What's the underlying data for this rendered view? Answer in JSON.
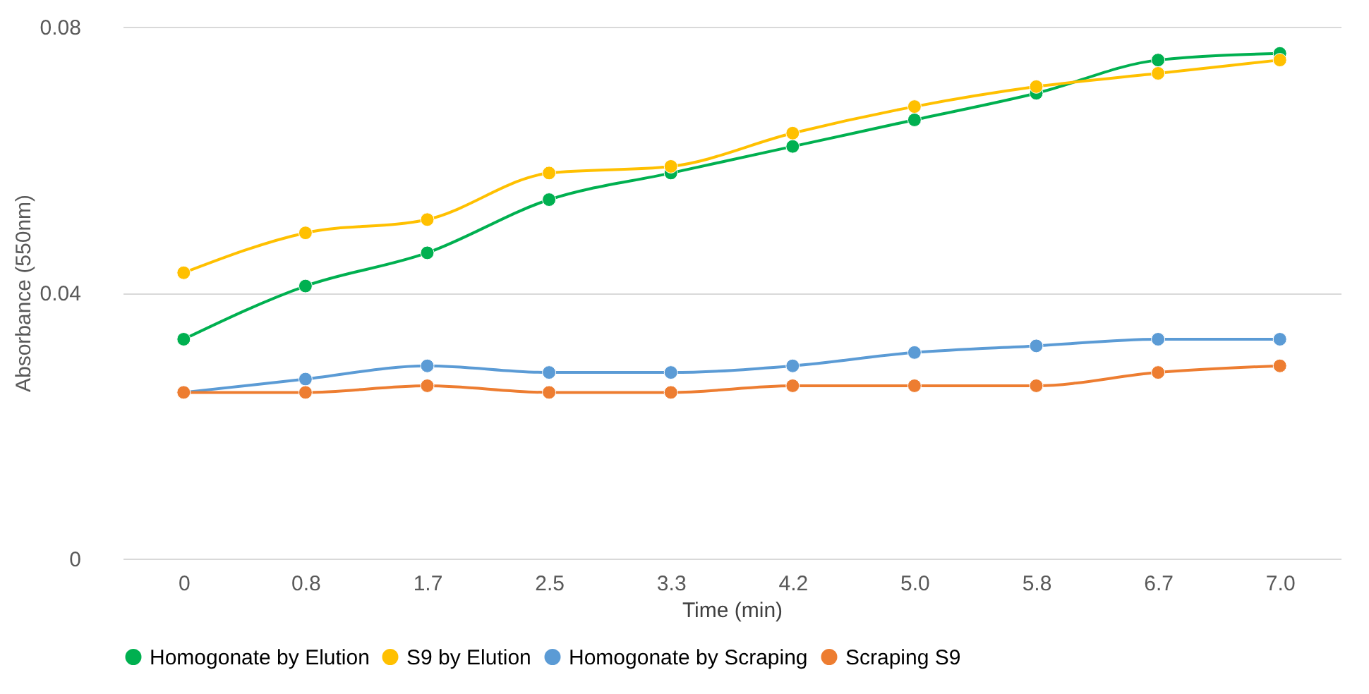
{
  "chart_data": {
    "type": "line",
    "xlabel": "Time (min)",
    "ylabel": "Absorbance (550nm)",
    "categories": [
      "0",
      "0.8",
      "1.7",
      "2.5",
      "3.3",
      "4.2",
      "5.0",
      "5.8",
      "6.7",
      "7.0"
    ],
    "series": [
      {
        "name": "Homogonate by Elution",
        "color": "#00b050",
        "values": [
          0.033,
          0.041,
          0.046,
          0.054,
          0.058,
          0.062,
          0.066,
          0.07,
          0.075,
          0.076
        ]
      },
      {
        "name": "S9 by Elution",
        "color": "#ffc000",
        "values": [
          0.043,
          0.049,
          0.051,
          0.058,
          0.059,
          0.064,
          0.068,
          0.071,
          0.073,
          0.075
        ]
      },
      {
        "name": "Homogonate by Scraping",
        "color": "#5b9bd5",
        "values": [
          0.025,
          0.027,
          0.029,
          0.028,
          0.028,
          0.029,
          0.031,
          0.032,
          0.033,
          0.033
        ]
      },
      {
        "name": "Scraping S9",
        "color": "#ed7d31",
        "values": [
          0.025,
          0.025,
          0.026,
          0.025,
          0.025,
          0.026,
          0.026,
          0.026,
          0.028,
          0.029
        ]
      }
    ],
    "ylim": [
      0,
      0.08
    ],
    "yticks": [
      0,
      0.04,
      0.08
    ],
    "grid": "y",
    "legend": "bottom",
    "marker": "circle",
    "line_style": "solid"
  }
}
